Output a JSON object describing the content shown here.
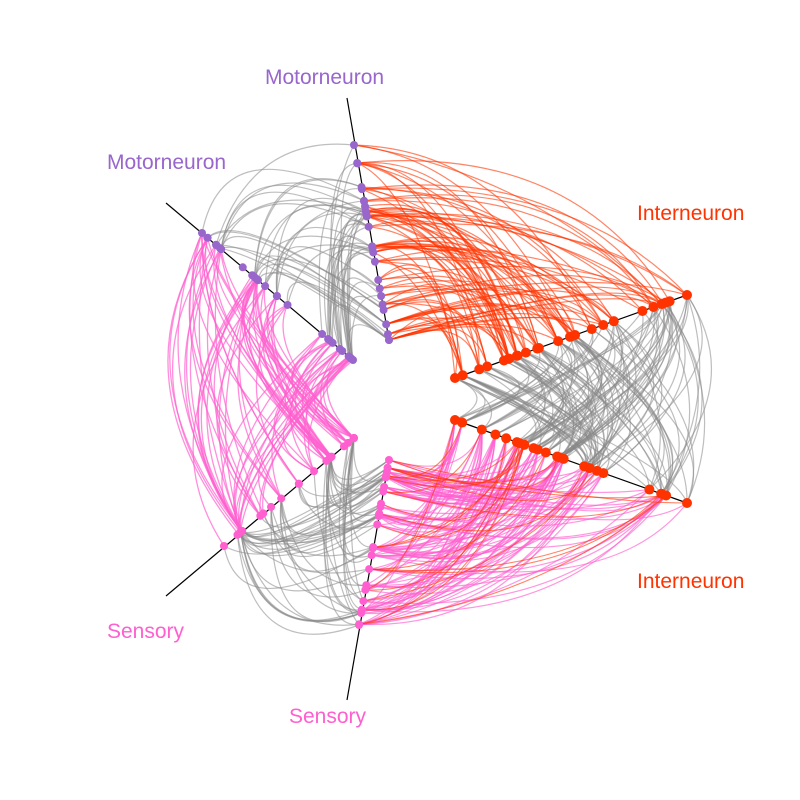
{
  "colors": {
    "motorneuron": "#9966cc",
    "interneuron": "#ff3300",
    "sensory": "#ff5fcf",
    "cross": "#888888",
    "axis": "#000000",
    "background": "#ffffff"
  },
  "axes": [
    {
      "id": "motor-a",
      "label": "Motorneuron",
      "group": "motorneuron"
    },
    {
      "id": "inter-a",
      "label": "Interneuron",
      "group": "interneuron"
    },
    {
      "id": "inter-b",
      "label": "Interneuron",
      "group": "interneuron"
    },
    {
      "id": "sensory-a",
      "label": "Sensory",
      "group": "sensory"
    },
    {
      "id": "sensory-b",
      "label": "Sensory",
      "group": "sensory"
    },
    {
      "id": "motor-b",
      "label": "Motorneuron",
      "group": "motorneuron"
    }
  ]
}
